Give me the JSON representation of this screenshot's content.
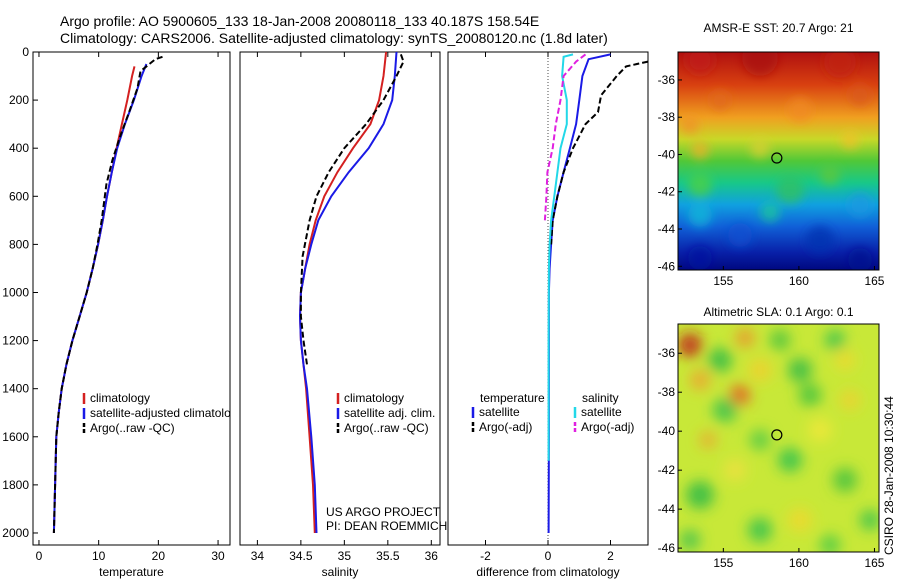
{
  "header": {
    "line1": "Argo profile: AO 5900605_133 18-Jan-2008 20080118_133 40.187S 158.54E",
    "line2": "Climatology: CARS2006. Satellite-adjusted climatology: synTS_20080120.nc (1.8d later)"
  },
  "colors": {
    "red": "#d42020",
    "blue": "#1a1ae6",
    "black": "#000000",
    "cyan": "#22d8e8",
    "magenta": "#e020e0"
  },
  "chart_data": [
    {
      "id": "temperature",
      "type": "line",
      "xlabel": "temperature",
      "xlim": [
        -1,
        32
      ],
      "ylim": [
        0,
        2050
      ],
      "xticks": [
        0,
        10,
        20,
        30
      ],
      "yticks": [
        0,
        200,
        400,
        600,
        800,
        1000,
        1200,
        1400,
        1600,
        1800,
        2000
      ],
      "legend": [
        "climatology",
        "satellite-adjusted climatology",
        "Argo(..raw -QC)"
      ],
      "series": [
        {
          "name": "climatology",
          "color": "red",
          "dash": "",
          "x": [
            16.0,
            15.6,
            14.8,
            13.9,
            13.0,
            12.2,
            11.4,
            10.7,
            9.9,
            9.0,
            8.0,
            6.8,
            5.6,
            4.6,
            3.8,
            3.3,
            2.9,
            2.7,
            2.5
          ],
          "y": [
            60,
            100,
            200,
            300,
            400,
            500,
            600,
            700,
            800,
            900,
            1000,
            1100,
            1200,
            1300,
            1400,
            1500,
            1600,
            1800,
            2000
          ]
        },
        {
          "name": "satellite-adjusted climatology",
          "color": "blue",
          "dash": "",
          "x": [
            18.0,
            17.2,
            15.9,
            14.4,
            13.1,
            12.2,
            11.4,
            10.7,
            9.9,
            9.0,
            8.0,
            6.8,
            5.6,
            4.6,
            3.8,
            3.3,
            2.9,
            2.7,
            2.5
          ],
          "y": [
            50,
            100,
            200,
            300,
            400,
            500,
            600,
            700,
            800,
            900,
            1000,
            1100,
            1200,
            1300,
            1400,
            1500,
            1600,
            1800,
            2000
          ]
        },
        {
          "name": "Argo(..raw -QC)",
          "color": "black",
          "dash": "6,3",
          "x": [
            20.7,
            19.5,
            17.0,
            16.5,
            15.1,
            13.6,
            12.3,
            11.3,
            10.5,
            9.8,
            9.0,
            8.0,
            6.8,
            5.6,
            4.6,
            3.8,
            3.3,
            2.9,
            2.7,
            2.5
          ],
          "y": [
            20,
            30,
            80,
            150,
            250,
            350,
            450,
            550,
            700,
            800,
            900,
            1000,
            1100,
            1200,
            1300,
            1400,
            1500,
            1600,
            1800,
            2000
          ]
        }
      ]
    },
    {
      "id": "salinity",
      "type": "line",
      "xlabel": "salinity",
      "xlim": [
        33.8,
        36.1
      ],
      "ylim": [
        0,
        2050
      ],
      "xticks": [
        34,
        34.5,
        35,
        35.5,
        36
      ],
      "yticks": [],
      "legend": [
        "climatology",
        "satellite adj. clim.",
        "Argo(..raw -QC)"
      ],
      "annotation": [
        "US ARGO PROJECT",
        "PI: DEAN ROEMMICH"
      ],
      "series": [
        {
          "name": "climatology",
          "color": "red",
          "dash": "",
          "x": [
            35.48,
            35.45,
            35.4,
            35.3,
            35.1,
            34.92,
            34.77,
            34.67,
            34.6,
            34.55,
            34.5,
            34.49,
            34.5,
            34.53,
            34.56,
            34.6,
            34.64,
            34.66
          ],
          "y": [
            0,
            100,
            200,
            300,
            400,
            500,
            600,
            700,
            800,
            900,
            1000,
            1100,
            1200,
            1300,
            1400,
            1600,
            1800,
            2000
          ]
        },
        {
          "name": "satellite adj. clim.",
          "color": "blue",
          "dash": "",
          "x": [
            35.6,
            35.58,
            35.55,
            35.45,
            35.28,
            35.05,
            34.85,
            34.7,
            34.62,
            34.55,
            34.5,
            34.49,
            34.5,
            34.53,
            34.57,
            34.62,
            34.66,
            34.68
          ],
          "y": [
            0,
            100,
            200,
            300,
            400,
            500,
            600,
            700,
            800,
            900,
            1000,
            1100,
            1200,
            1300,
            1400,
            1600,
            1800,
            2000
          ]
        },
        {
          "name": "Argo(..raw -QC)",
          "color": "black",
          "dash": "6,3",
          "x": [
            35.65,
            35.68,
            35.6,
            35.45,
            35.25,
            35.0,
            34.82,
            34.68,
            34.6,
            34.52,
            34.5,
            34.5,
            34.53,
            34.57
          ],
          "y": [
            10,
            40,
            100,
            200,
            300,
            400,
            500,
            600,
            700,
            850,
            1000,
            1100,
            1200,
            1300
          ]
        }
      ]
    },
    {
      "id": "difference",
      "type": "line",
      "xlabel": "difference from climatology",
      "xlim": [
        -3.2,
        3.2
      ],
      "ylim": [
        0,
        2050
      ],
      "xticks": [
        -2,
        0,
        2
      ],
      "yticks": [],
      "legend_left": [
        "temperature",
        "satellite",
        "Argo(-adj)"
      ],
      "legend_right": [
        "salinity",
        "satellite",
        "Argo(-adj)"
      ],
      "series": [
        {
          "name": "temperature satellite",
          "color": "blue",
          "dash": "",
          "x": [
            2.0,
            1.3,
            1.1,
            1.0,
            0.9,
            0.7,
            0.5,
            0.3,
            0.15,
            0.1,
            0.05,
            0.03,
            0.03,
            0.03,
            0.02
          ],
          "y": [
            10,
            30,
            100,
            200,
            300,
            400,
            500,
            600,
            700,
            800,
            900,
            1000,
            1200,
            1600,
            2000
          ]
        },
        {
          "name": "temperature Argo(-adj)",
          "color": "black",
          "dash": "6,3",
          "x": [
            3.2,
            2.5,
            2.2,
            1.7,
            1.6,
            1.2,
            0.8,
            0.5,
            0.3,
            0.15,
            0.1
          ],
          "y": [
            40,
            60,
            100,
            180,
            250,
            300,
            400,
            500,
            600,
            700,
            800
          ]
        },
        {
          "name": "salinity satellite",
          "color": "cyan",
          "dash": "",
          "x": [
            0.8,
            0.5,
            0.45,
            0.6,
            0.6,
            0.4,
            0.3,
            0.2,
            0.1,
            0.05,
            0.03,
            0.02,
            0.02
          ],
          "y": [
            10,
            20,
            100,
            200,
            300,
            400,
            500,
            600,
            700,
            800,
            900,
            1200,
            1700
          ]
        },
        {
          "name": "salinity Argo(-adj)",
          "color": "magenta",
          "dash": "6,3",
          "x": [
            1.2,
            0.9,
            0.5,
            0.4,
            0.25,
            0.15,
            -0.02,
            -0.05,
            -0.1
          ],
          "y": [
            10,
            40,
            100,
            200,
            300,
            400,
            500,
            600,
            700
          ]
        }
      ]
    },
    {
      "id": "sst-map",
      "type": "heatmap",
      "title": "AMSR-E SST: 20.7 Argo: 21",
      "xlim": [
        152,
        165.3
      ],
      "ylim": [
        -46.2,
        -34.5
      ],
      "xticks": [
        155,
        160,
        165
      ],
      "yticks": [
        -36,
        -38,
        -40,
        -42,
        -44,
        -46
      ],
      "marker": {
        "lon": 158.54,
        "lat": -40.19
      }
    },
    {
      "id": "sla-map",
      "type": "heatmap",
      "title": "Altimetric SLA: 0.1 Argo: 0.1",
      "xlim": [
        152,
        165.3
      ],
      "ylim": [
        -46.2,
        -34.5
      ],
      "xticks": [
        155,
        160,
        165
      ],
      "yticks": [
        -36,
        -38,
        -40,
        -42,
        -44,
        -46
      ],
      "marker": {
        "lon": 158.54,
        "lat": -40.19
      }
    }
  ],
  "footer": {
    "stamp": "CSIRO 28-Jan-2008 10:30:44"
  }
}
